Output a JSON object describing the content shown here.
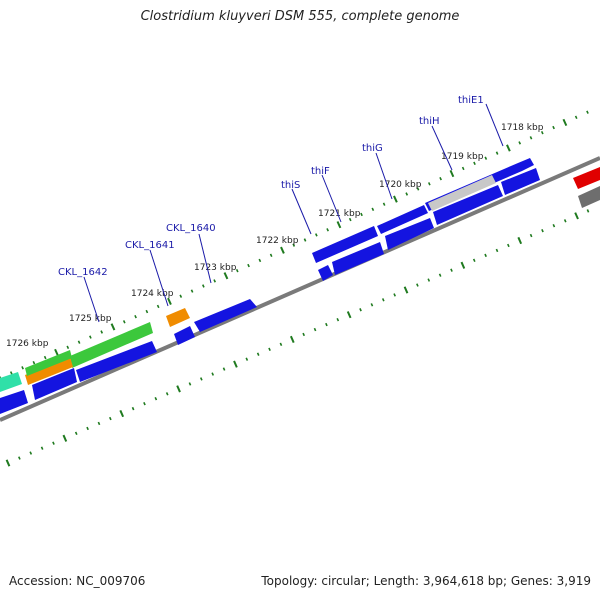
{
  "title": "Clostridium kluyveri DSM 555, complete genome",
  "footer": {
    "accession": "Accession: NC_009706",
    "summary": "Topology: circular; Length: 3,964,618 bp; Genes: 3,919"
  },
  "colors": {
    "backbone": "#7a7a7a",
    "tick": "#1f7a1f",
    "gene_blue": "#1414e0",
    "gene_green": "#3cc83c",
    "gene_orange": "#f08c00",
    "gene_teal": "#2fe0a8",
    "gene_red": "#e00000",
    "gene_grey": "#6e6e6e",
    "gene_lightgrey": "#c8c8c8",
    "label": "#1a1aa8"
  },
  "scale": {
    "unit": "kbp",
    "labels": [
      "1718 kbp",
      "1719 kbp",
      "1720 kbp",
      "1721 kbp",
      "1722 kbp",
      "1723 kbp",
      "1724 kbp",
      "1725 kbp",
      "1726 kbp"
    ]
  },
  "gene_labels": [
    "thiE1",
    "thiH",
    "thiG",
    "thiF",
    "thiS",
    "CKL_1640",
    "CKL_1641",
    "CKL_1642"
  ]
}
